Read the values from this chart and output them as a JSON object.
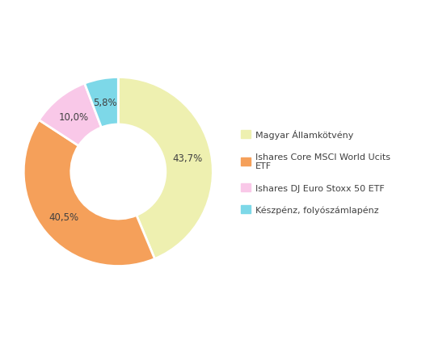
{
  "labels": [
    "Magyar Államkötvény",
    "Ishares Core MSCI World Ucits\nETF",
    "Ishares DJ Euro Stoxx 50 ETF",
    "Készpénz, folyószámlapénz"
  ],
  "values": [
    43.7,
    40.5,
    10.0,
    5.8
  ],
  "colors": [
    "#eef0b0",
    "#f5a05a",
    "#f9c8e8",
    "#7dd8e8"
  ],
  "pct_labels": [
    "43,7%",
    "40,5%",
    "10,0%",
    "5,8%"
  ],
  "background_color": "#ffffff",
  "text_color": "#404040",
  "legend_fontsize": 8,
  "label_fontsize": 8.5
}
